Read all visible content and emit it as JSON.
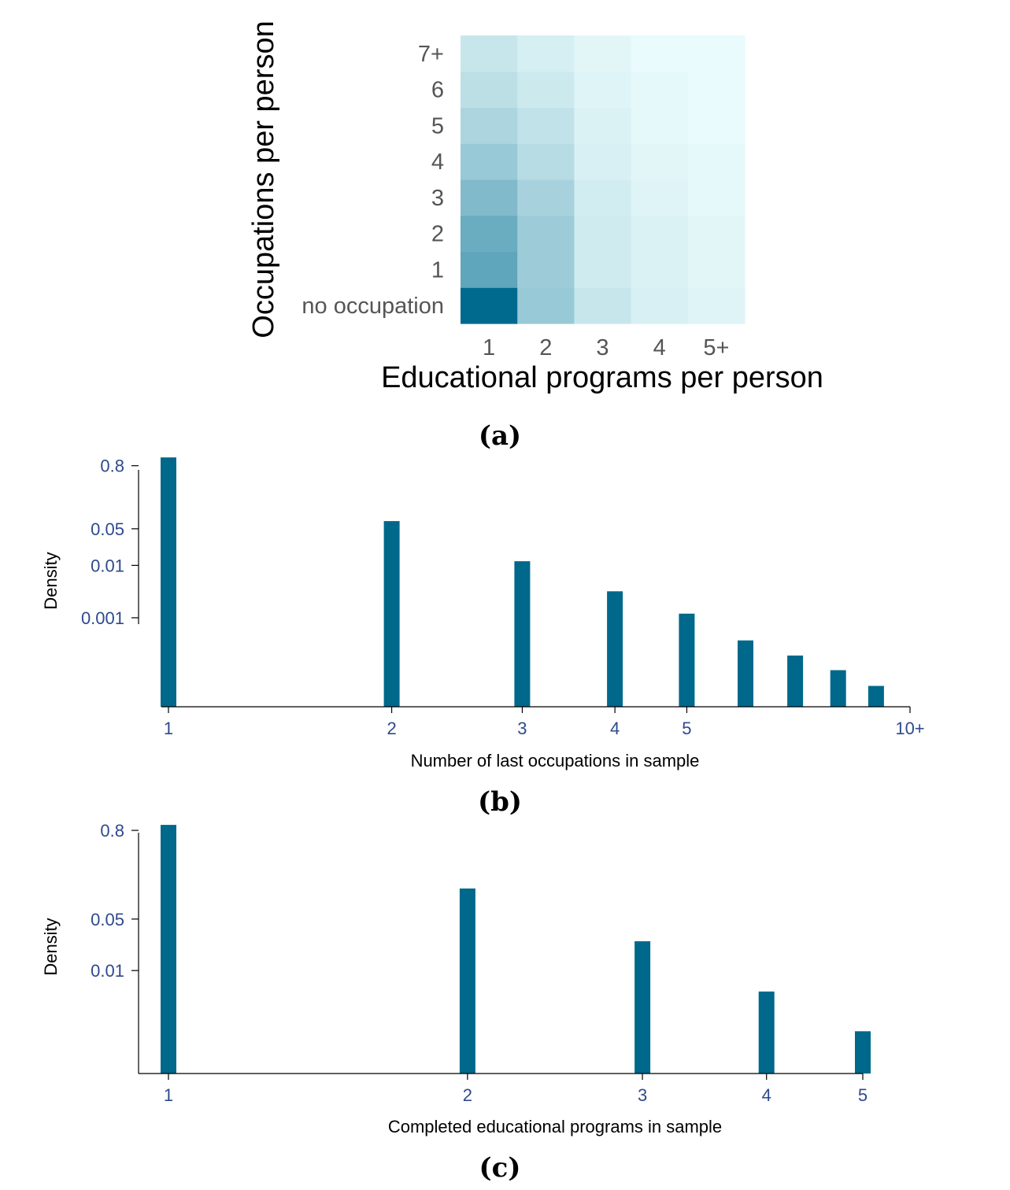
{
  "panels": {
    "a": {
      "label": "(a)"
    },
    "b": {
      "label": "(b)"
    },
    "c": {
      "label": "(c)"
    }
  },
  "chart_data": [
    {
      "type": "heatmap",
      "xlabel": "Educational programs per person",
      "ylabel": "Occupations per person",
      "x_categories": [
        "1",
        "2",
        "3",
        "4",
        "5+"
      ],
      "y_categories": [
        "no occupation",
        "1",
        "2",
        "3",
        "4",
        "5",
        "6",
        "7+"
      ],
      "values": [
        [
          1.0,
          0.3,
          0.12,
          0.06,
          0.04
        ],
        [
          0.55,
          0.28,
          0.09,
          0.05,
          0.03
        ],
        [
          0.5,
          0.28,
          0.09,
          0.05,
          0.03
        ],
        [
          0.4,
          0.24,
          0.08,
          0.04,
          0.02
        ],
        [
          0.3,
          0.18,
          0.06,
          0.03,
          0.02
        ],
        [
          0.22,
          0.14,
          0.05,
          0.02,
          0.01
        ],
        [
          0.16,
          0.1,
          0.04,
          0.02,
          0.01
        ],
        [
          0.12,
          0.07,
          0.03,
          0.01,
          0.01
        ]
      ],
      "color_low": "#eefefe",
      "color_high": "#006a8e"
    },
    {
      "type": "bar",
      "xlabel": "Number of last occupations in sample",
      "ylabel": "Density",
      "y_scale": "log",
      "ylim": [
        2e-05,
        1.2
      ],
      "yticks": [
        0.8,
        0.05,
        0.01,
        0.001
      ],
      "ytick_labels": [
        "0.8",
        "0.05",
        "0.01",
        "0.001"
      ],
      "x_scale": "log",
      "xticks": [
        1,
        2,
        3,
        4,
        5,
        10
      ],
      "xtick_labels": [
        "1",
        "2",
        "3",
        "4",
        "5",
        "10+"
      ],
      "x": [
        1,
        2,
        3,
        4,
        5,
        6,
        7,
        8,
        9
      ],
      "values": [
        1.15,
        0.07,
        0.012,
        0.0032,
        0.0012,
        0.00037,
        0.00019,
        0.0001,
        5e-05
      ],
      "color": "#00688b"
    },
    {
      "type": "bar",
      "xlabel": "Completed educational programs in sample",
      "ylabel": "Density",
      "y_scale": "log",
      "ylim": [
        0.0004,
        1.0
      ],
      "yticks": [
        0.8,
        0.05,
        0.01
      ],
      "ytick_labels": [
        "0.8",
        "0.05",
        "0.01"
      ],
      "x_scale": "log",
      "xticks": [
        1,
        2,
        3,
        4,
        5
      ],
      "xtick_labels": [
        "1",
        "2",
        "3",
        "4",
        "5"
      ],
      "x": [
        1,
        2,
        3,
        4,
        5
      ],
      "values": [
        0.95,
        0.13,
        0.025,
        0.0052,
        0.0015
      ],
      "color": "#00688b"
    }
  ]
}
